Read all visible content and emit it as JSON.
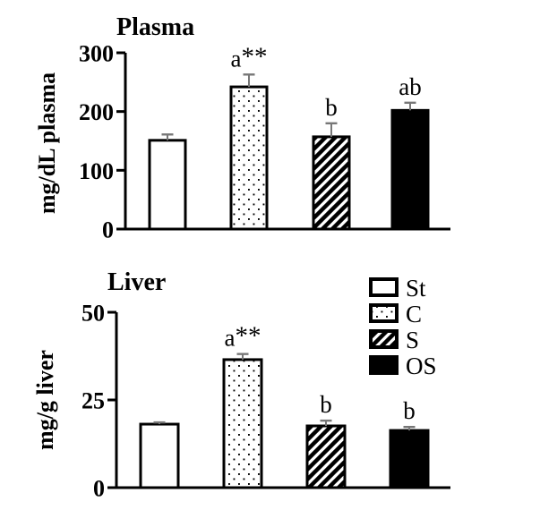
{
  "figure": {
    "background": "#ffffff",
    "foreground": "#000000",
    "error_bar_color": "#777777"
  },
  "chart_data": [
    {
      "type": "bar",
      "title": "Plasma",
      "ylabel": "mg/dL plasma",
      "xlabel": "",
      "ylim": [
        0,
        300
      ],
      "yticks": [
        0,
        100,
        200,
        300
      ],
      "grid": false,
      "categories": [
        "St",
        "C",
        "S",
        "OS"
      ],
      "values": [
        151,
        242,
        157,
        202
      ],
      "errors": [
        10,
        21,
        23,
        13
      ],
      "annotations": [
        "",
        "a**",
        "b",
        "ab"
      ],
      "bar_styles": [
        "white",
        "dots",
        "diagonal-hatch",
        "solid-black"
      ]
    },
    {
      "type": "bar",
      "title": "Liver",
      "ylabel": "mg/g liver",
      "xlabel": "",
      "ylim": [
        0,
        50
      ],
      "yticks": [
        0,
        25,
        50
      ],
      "grid": false,
      "categories": [
        "St",
        "C",
        "S",
        "OS"
      ],
      "values": [
        18.1,
        36.5,
        17.6,
        16.3
      ],
      "errors": [
        0.5,
        1.6,
        1.5,
        1.0
      ],
      "annotations": [
        "",
        "a**",
        "b",
        "b"
      ],
      "bar_styles": [
        "white",
        "dots",
        "diagonal-hatch",
        "solid-black"
      ],
      "legend": {
        "position": "top-right",
        "entries": [
          {
            "label": "St",
            "style": "white"
          },
          {
            "label": "C",
            "style": "dots"
          },
          {
            "label": "S",
            "style": "diagonal-hatch"
          },
          {
            "label": "OS",
            "style": "solid-black"
          }
        ]
      }
    }
  ]
}
